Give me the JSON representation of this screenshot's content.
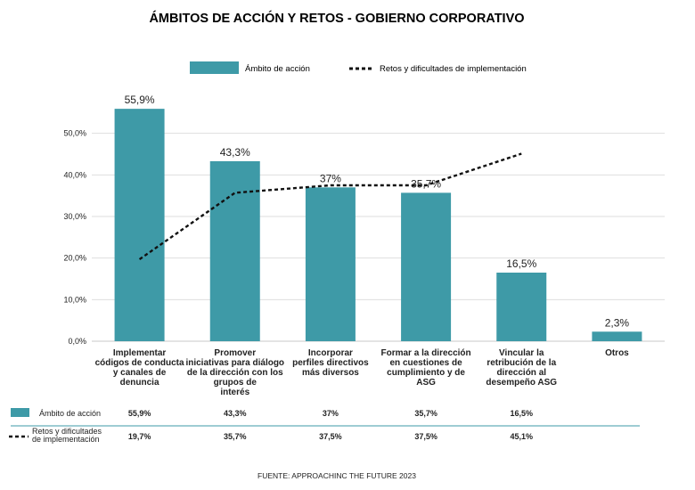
{
  "chart_data": {
    "type": "bar",
    "title": "ÁMBITOS DE ACCIÓN Y RETOS - GOBIERNO CORPORATIVO",
    "categories": [
      [
        "Implementar",
        "códigos de conducta",
        "y canales de",
        "denuncia"
      ],
      [
        "Promover",
        "iniciativas para diálogo",
        "de la dirección con los",
        "grupos de",
        "interés"
      ],
      [
        "Incorporar",
        "perfiles directivos",
        "más diversos"
      ],
      [
        "Formar a la dirección",
        "en cuestiones de",
        "cumplimiento y de",
        "ASG"
      ],
      [
        "Vincular la",
        "retribución de la",
        "dirección al",
        "desempeño ASG"
      ],
      [
        "Otros"
      ]
    ],
    "series": [
      {
        "name": "Ámbito de acción",
        "type": "bar",
        "color": "#3e9aa7",
        "values": [
          55.9,
          43.3,
          37,
          35.7,
          16.5,
          2.3
        ],
        "labels": [
          "55,9%",
          "43,3%",
          "37%",
          "35,7%",
          "16,5%",
          "2,3%"
        ]
      },
      {
        "name": "Retos y dificultades de implementación",
        "type": "line",
        "style": "dashed",
        "color": "#111111",
        "values": [
          19.7,
          35.7,
          37.5,
          37.5,
          45.1,
          null
        ]
      }
    ],
    "ylim": [
      0,
      60
    ],
    "yticks": [
      0,
      10,
      20,
      30,
      40,
      50
    ],
    "ytick_labels": [
      "0,0%",
      "10,0%",
      "20,0%",
      "30,0%",
      "40,0%",
      "50,0%"
    ],
    "grid": true,
    "legend_position": "top",
    "table": {
      "rows": [
        {
          "label": [
            "Ámbito de acción"
          ],
          "values": [
            "55,9%",
            "43,3%",
            "37%",
            "35,7%",
            "16,5%",
            ""
          ]
        },
        {
          "label": [
            "Retos y dificultades",
            "de implementación"
          ],
          "values": [
            "19,7%",
            "35,7%",
            "37,5%",
            "37,5%",
            "45,1%",
            ""
          ]
        }
      ]
    },
    "source": "FUENTE: APPROACHINC THE FUTURE 2023"
  }
}
